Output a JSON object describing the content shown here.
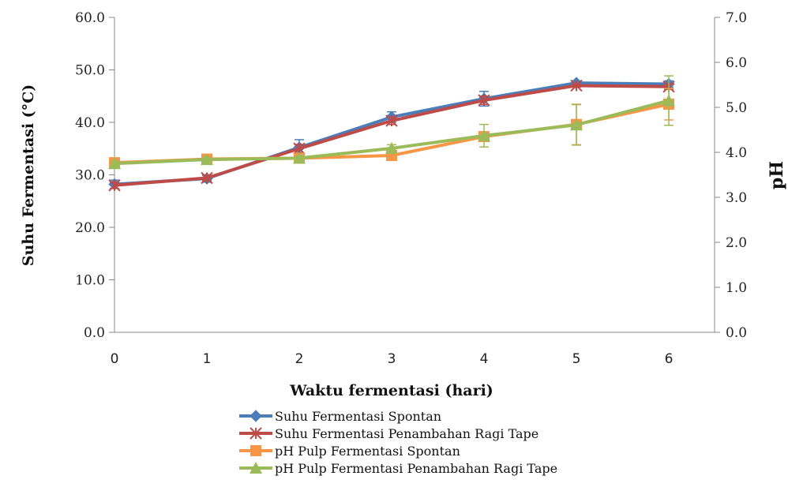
{
  "chart_data": {
    "type": "line",
    "x_label": "Waktu fermentasi (hari)",
    "y_left_label": "Suhu Fermentasi  (°C)",
    "y_right_label": "pH",
    "x": [
      0,
      1,
      2,
      3,
      4,
      5,
      6
    ],
    "x_ticks": [
      "0",
      "1",
      "2",
      "3",
      "4",
      "5",
      "6"
    ],
    "y_left_ticks": [
      "0.0",
      "10.0",
      "20.0",
      "30.0",
      "40.0",
      "50.0",
      "60.0"
    ],
    "y_right_ticks": [
      "0.0",
      "1.0",
      "2.0",
      "3.0",
      "4.0",
      "5.0",
      "6.0",
      "7.0"
    ],
    "y_left_range": [
      0,
      60
    ],
    "y_right_range": [
      0,
      7
    ],
    "grid": false,
    "legend_position": "bottom",
    "series": [
      {
        "name": "Suhu Fermentasi Spontan",
        "axis": "left",
        "color": "#4a7ebb",
        "marker": "diamond",
        "values": [
          28.2,
          29.3,
          35.2,
          41.0,
          44.5,
          47.5,
          47.3
        ],
        "errors": [
          0.8,
          0.7,
          1.5,
          1.0,
          1.4,
          0.4,
          0.6
        ]
      },
      {
        "name": "Suhu Fermentasi Penambahan Ragi Tape",
        "axis": "left",
        "color": "#be4b48",
        "marker": "x-star",
        "values": [
          28.0,
          29.4,
          35.0,
          40.3,
          44.2,
          47.0,
          46.8
        ],
        "errors": [
          0.6,
          0.5,
          0.8,
          0.7,
          0.8,
          0.3,
          0.5
        ]
      },
      {
        "name": "pH Pulp Fermentasi Spontan",
        "axis": "right",
        "color": "#f79646",
        "marker": "square",
        "values": [
          3.77,
          3.85,
          3.87,
          3.93,
          4.35,
          4.62,
          5.07
        ],
        "errors": [
          0.08,
          0.05,
          0.06,
          0.08,
          0.1,
          0.45,
          0.35
        ]
      },
      {
        "name": "pH Pulp Fermentasi Penambahan Ragi Tape",
        "axis": "right",
        "color": "#9bbb59",
        "marker": "triangle",
        "values": [
          3.75,
          3.84,
          3.87,
          4.09,
          4.37,
          4.61,
          5.15
        ],
        "errors": [
          0.05,
          0.04,
          0.05,
          0.08,
          0.25,
          0.45,
          0.55
        ]
      }
    ]
  }
}
